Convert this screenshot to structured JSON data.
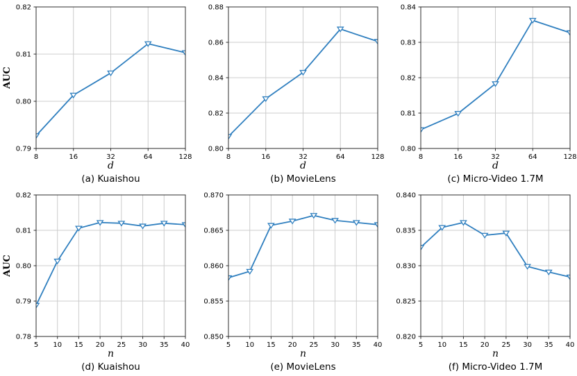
{
  "figure": {
    "description": "Six line subplots of AUC versus hyper-parameters d and n on three datasets",
    "grid": true,
    "legend": "none"
  },
  "style": {
    "line_color": "#2f7fbf",
    "marker": "triangle-down-open",
    "marker_fill": "#ffffff",
    "grid_color": "#cccccc",
    "spine_color": "#2b2b2b",
    "text_color": "#000000",
    "background": "#ffffff"
  },
  "chart_data": [
    {
      "type": "line",
      "caption": "(a) Kuaishou",
      "xlabel": "d",
      "ylabel": "AUC",
      "x": [
        8,
        16,
        32,
        64,
        128
      ],
      "x_tick_labels": [
        "8",
        "16",
        "32",
        "64",
        "128"
      ],
      "values": [
        0.7927,
        0.8013,
        0.806,
        0.8122,
        0.8103
      ],
      "ylim": [
        0.79,
        0.82
      ],
      "y_ticks": [
        0.79,
        0.8,
        0.81,
        0.82
      ],
      "y_tick_labels": [
        "0.79",
        "0.80",
        "0.81",
        "0.82"
      ],
      "x_spacing": "equal"
    },
    {
      "type": "line",
      "caption": "(b) MovieLens",
      "xlabel": "d",
      "ylabel": "",
      "x": [
        8,
        16,
        32,
        64,
        128
      ],
      "x_tick_labels": [
        "8",
        "16",
        "32",
        "64",
        "128"
      ],
      "values": [
        0.8068,
        0.8281,
        0.843,
        0.8675,
        0.8605
      ],
      "ylim": [
        0.8,
        0.88
      ],
      "y_ticks": [
        0.8,
        0.82,
        0.84,
        0.86,
        0.88
      ],
      "y_tick_labels": [
        "0.80",
        "0.82",
        "0.84",
        "0.86",
        "0.88"
      ],
      "x_spacing": "equal"
    },
    {
      "type": "line",
      "caption": "(c) Micro-Video 1.7M",
      "xlabel": "d",
      "ylabel": "",
      "x": [
        8,
        16,
        32,
        64,
        128
      ],
      "x_tick_labels": [
        "8",
        "16",
        "32",
        "64",
        "128"
      ],
      "values": [
        0.8053,
        0.8099,
        0.8183,
        0.8362,
        0.8327
      ],
      "ylim": [
        0.8,
        0.84
      ],
      "y_ticks": [
        0.8,
        0.81,
        0.82,
        0.83,
        0.84
      ],
      "y_tick_labels": [
        "0.80",
        "0.81",
        "0.82",
        "0.83",
        "0.84"
      ],
      "x_spacing": "equal"
    },
    {
      "type": "line",
      "caption": "(d) Kuaishou",
      "xlabel": "n",
      "ylabel": "AUC",
      "x": [
        5,
        10,
        15,
        20,
        25,
        30,
        35,
        40
      ],
      "x_tick_labels": [
        "5",
        "10",
        "15",
        "20",
        "25",
        "30",
        "35",
        "40"
      ],
      "values": [
        0.7888,
        0.8013,
        0.8106,
        0.8122,
        0.812,
        0.8112,
        0.812,
        0.8116
      ],
      "ylim": [
        0.78,
        0.82
      ],
      "y_ticks": [
        0.78,
        0.79,
        0.8,
        0.81,
        0.82
      ],
      "y_tick_labels": [
        "0.78",
        "0.79",
        "0.80",
        "0.81",
        "0.82"
      ],
      "x_spacing": "equal"
    },
    {
      "type": "line",
      "caption": "(e) MovieLens",
      "xlabel": "n",
      "ylabel": "",
      "x": [
        5,
        10,
        15,
        20,
        25,
        30,
        35,
        40
      ],
      "x_tick_labels": [
        "5",
        "10",
        "15",
        "20",
        "25",
        "30",
        "35",
        "40"
      ],
      "values": [
        0.8583,
        0.8592,
        0.8657,
        0.8663,
        0.8671,
        0.8664,
        0.8661,
        0.8658
      ],
      "ylim": [
        0.85,
        0.87
      ],
      "y_ticks": [
        0.85,
        0.855,
        0.86,
        0.865,
        0.87
      ],
      "y_tick_labels": [
        "0.850",
        "0.855",
        "0.860",
        "0.865",
        "0.870"
      ],
      "x_spacing": "equal"
    },
    {
      "type": "line",
      "caption": "(f) Micro-Video 1.7M",
      "xlabel": "n",
      "ylabel": "",
      "x": [
        5,
        10,
        15,
        20,
        25,
        30,
        35,
        40
      ],
      "x_tick_labels": [
        "5",
        "10",
        "15",
        "20",
        "25",
        "30",
        "35",
        "40"
      ],
      "values": [
        0.8326,
        0.8354,
        0.8361,
        0.8343,
        0.8346,
        0.8299,
        0.8291,
        0.8284
      ],
      "ylim": [
        0.82,
        0.84
      ],
      "y_ticks": [
        0.82,
        0.825,
        0.83,
        0.835,
        0.84
      ],
      "y_tick_labels": [
        "0.820",
        "0.825",
        "0.830",
        "0.835",
        "0.840"
      ],
      "x_spacing": "equal"
    }
  ]
}
